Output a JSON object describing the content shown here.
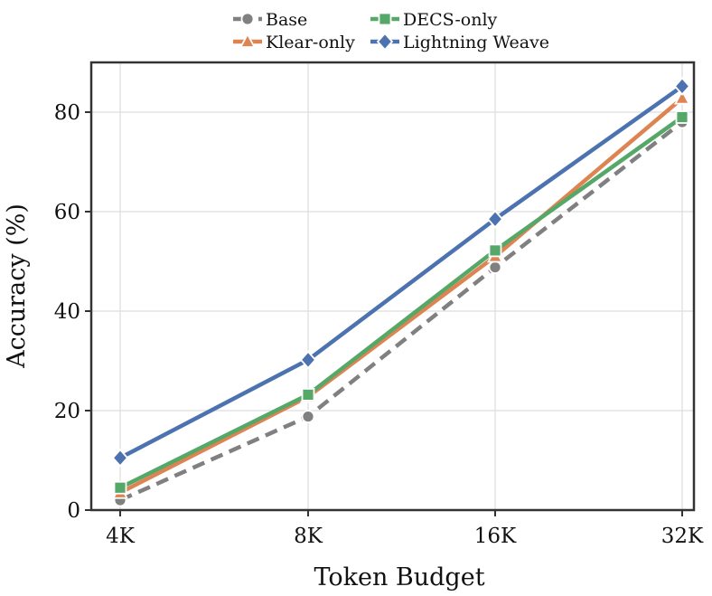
{
  "chart_data": {
    "type": "line",
    "title": "",
    "xlabel": "Token Budget",
    "ylabel": "Accuracy (%)",
    "categories": [
      "4K",
      "8K",
      "16K",
      "32K"
    ],
    "ylim": [
      0,
      90
    ],
    "yticks": [
      0,
      20,
      40,
      60,
      80
    ],
    "grid": true,
    "legend_position": "top-center",
    "series": [
      {
        "name": "Base",
        "values": [
          2.0,
          18.8,
          48.8,
          78.0
        ],
        "color": "#808080",
        "marker": "circle",
        "dash": "dashed"
      },
      {
        "name": "Klear-only",
        "values": [
          3.5,
          22.8,
          51.0,
          82.8
        ],
        "color": "#dd8452",
        "marker": "triangle",
        "dash": "solid"
      },
      {
        "name": "DECS-only",
        "values": [
          4.5,
          23.2,
          52.2,
          79.0
        ],
        "color": "#55a868",
        "marker": "square",
        "dash": "solid"
      },
      {
        "name": "Lightning Weave",
        "values": [
          10.5,
          30.2,
          58.5,
          85.2
        ],
        "color": "#4c72b0",
        "marker": "diamond",
        "dash": "solid"
      }
    ]
  }
}
